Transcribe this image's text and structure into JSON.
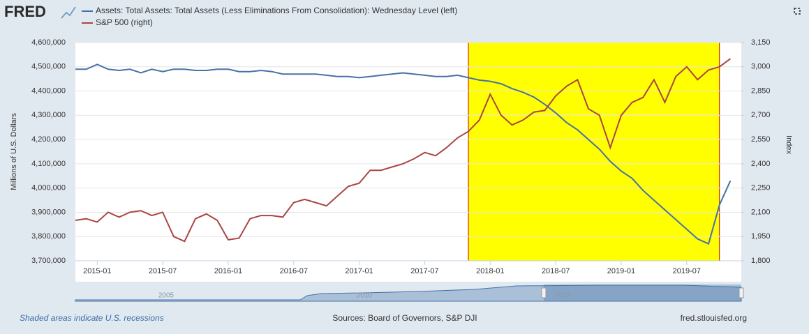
{
  "logo": "FRED",
  "chart_data": {
    "type": "line",
    "series": [
      {
        "name": "Assets: Total Assets: Total Assets (Less Eliminations From Consolidation): Wednesday Level (left)",
        "color": "#4572a7",
        "axis": "y",
        "values": [
          4490000,
          4490000,
          4510000,
          4490000,
          4485000,
          4490000,
          4475000,
          4490000,
          4480000,
          4490000,
          4490000,
          4485000,
          4485000,
          4490000,
          4490000,
          4480000,
          4480000,
          4485000,
          4480000,
          4470000,
          4470000,
          4470000,
          4470000,
          4465000,
          4460000,
          4460000,
          4455000,
          4460000,
          4465000,
          4470000,
          4475000,
          4470000,
          4465000,
          4460000,
          4460000,
          4465000,
          4455000,
          4445000,
          4440000,
          4430000,
          4410000,
          4395000,
          4375000,
          4345000,
          4310000,
          4270000,
          4240000,
          4200000,
          4160000,
          4110000,
          4070000,
          4040000,
          3990000,
          3950000,
          3910000,
          3870000,
          3830000,
          3790000,
          3770000,
          3930000,
          4030000
        ]
      },
      {
        "name": "S&P 500 (right)",
        "color": "#aa4643",
        "axis": "y2",
        "values": [
          2050,
          2060,
          2040,
          2100,
          2070,
          2100,
          2110,
          2080,
          2100,
          1950,
          1920,
          2060,
          2090,
          2050,
          1930,
          1940,
          2060,
          2080,
          2080,
          2070,
          2160,
          2180,
          2160,
          2140,
          2200,
          2260,
          2280,
          2360,
          2360,
          2380,
          2400,
          2430,
          2470,
          2450,
          2500,
          2560,
          2600,
          2670,
          2830,
          2700,
          2640,
          2670,
          2720,
          2730,
          2820,
          2880,
          2920,
          2740,
          2700,
          2500,
          2700,
          2780,
          2810,
          2920,
          2780,
          2940,
          3000,
          2920,
          2980,
          3000,
          3050
        ]
      }
    ],
    "x": [
      "2014-11",
      "2014-12",
      "2015-01",
      "2015-02",
      "2015-03",
      "2015-04",
      "2015-05",
      "2015-06",
      "2015-07",
      "2015-08",
      "2015-09",
      "2015-10",
      "2015-11",
      "2015-12",
      "2016-01",
      "2016-02",
      "2016-03",
      "2016-04",
      "2016-05",
      "2016-06",
      "2016-07",
      "2016-08",
      "2016-09",
      "2016-10",
      "2016-11",
      "2016-12",
      "2017-01",
      "2017-02",
      "2017-03",
      "2017-04",
      "2017-05",
      "2017-06",
      "2017-07",
      "2017-08",
      "2017-09",
      "2017-10",
      "2017-11",
      "2017-12",
      "2018-01",
      "2018-02",
      "2018-03",
      "2018-04",
      "2018-05",
      "2018-06",
      "2018-07",
      "2018-08",
      "2018-09",
      "2018-10",
      "2018-11",
      "2018-12",
      "2019-01",
      "2019-02",
      "2019-03",
      "2019-04",
      "2019-05",
      "2019-06",
      "2019-07",
      "2019-08",
      "2019-09",
      "2019-10",
      "2019-11"
    ],
    "xlim": [
      "2014-11",
      "2019-12"
    ],
    "xticks": [
      "2015-01",
      "2015-07",
      "2016-01",
      "2016-07",
      "2017-01",
      "2017-07",
      "2018-01",
      "2018-07",
      "2019-01",
      "2019-07"
    ],
    "ylabel": "Millions of U.S. Dollars",
    "ylim": [
      3700000,
      4600000
    ],
    "yticks": [
      {
        "value": 3700000,
        "label": "3,700,000"
      },
      {
        "value": 3800000,
        "label": "3,800,000"
      },
      {
        "value": 3900000,
        "label": "3,900,000"
      },
      {
        "value": 4000000,
        "label": "4,000,000"
      },
      {
        "value": 4100000,
        "label": "4,100,000"
      },
      {
        "value": 4200000,
        "label": "4,200,000"
      },
      {
        "value": 4300000,
        "label": "4,300,000"
      },
      {
        "value": 4400000,
        "label": "4,400,000"
      },
      {
        "value": 4500000,
        "label": "4,500,000"
      },
      {
        "value": 4600000,
        "label": "4,600,000"
      }
    ],
    "y2label": "Index",
    "y2lim": [
      1800,
      3150
    ],
    "y2ticks": [
      {
        "value": 1800,
        "label": "1,800"
      },
      {
        "value": 1950,
        "label": "1,950"
      },
      {
        "value": 2100,
        "label": "2,100"
      },
      {
        "value": 2250,
        "label": "2,250"
      },
      {
        "value": 2400,
        "label": "2,400"
      },
      {
        "value": 2550,
        "label": "2,550"
      },
      {
        "value": 2700,
        "label": "2,700"
      },
      {
        "value": 2850,
        "label": "2,850"
      },
      {
        "value": 3000,
        "label": "3,000"
      },
      {
        "value": 3150,
        "label": "3,150"
      }
    ],
    "grid": true,
    "highlight": {
      "start": "2017-11",
      "end": "2019-10",
      "color": "#ffff00",
      "border": "#cc0000"
    },
    "navigator_labels": [
      "2005",
      "2010",
      "2015"
    ]
  },
  "footer": {
    "note": "Shaded areas indicate U.S. recessions",
    "sources": "Sources: Board of Governors, S&P DJI",
    "site": "fred.stlouisfed.org"
  }
}
